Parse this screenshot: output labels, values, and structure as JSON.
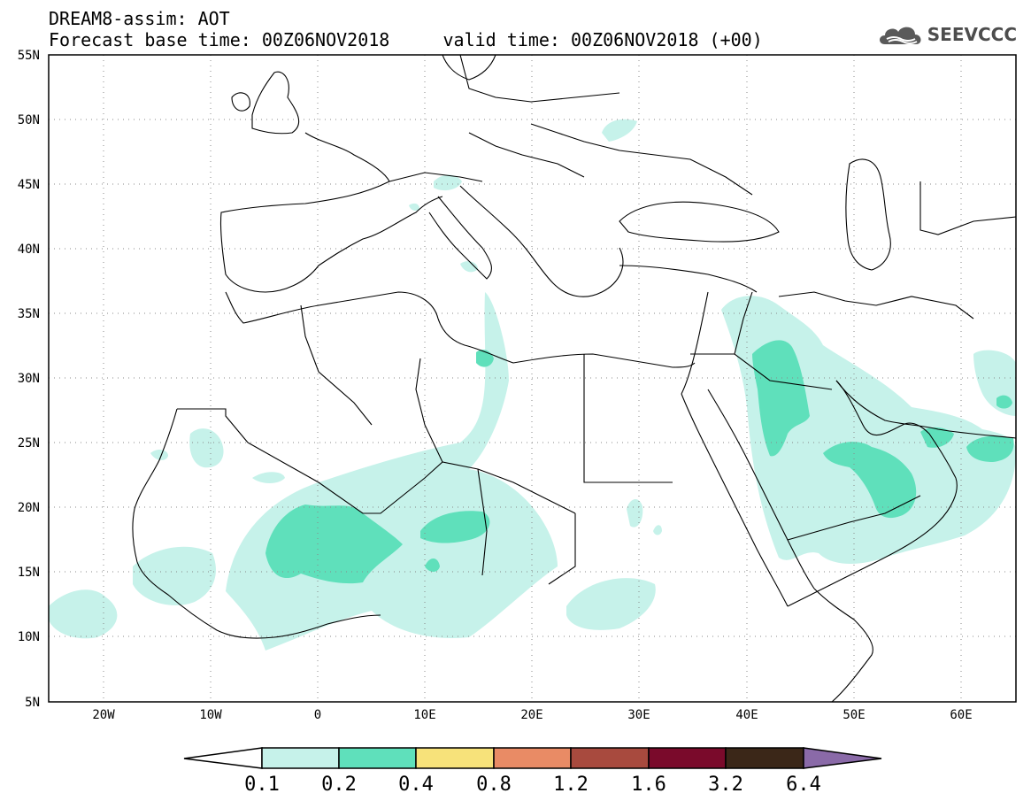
{
  "title": {
    "line1": "DREAM8-assim: AOT",
    "line2": "Forecast base time: 00Z06NOV2018     valid time: 00Z06NOV2018 (+00)"
  },
  "logo": {
    "icon": "cloud-icon",
    "text": "SEEVCCC",
    "color": "#4d4d4d"
  },
  "map": {
    "lon_range": [
      -25,
      65
    ],
    "lat_range": [
      5,
      55
    ],
    "lat_ticks": [
      {
        "value": 55,
        "label": "55N"
      },
      {
        "value": 50,
        "label": "50N"
      },
      {
        "value": 45,
        "label": "45N"
      },
      {
        "value": 40,
        "label": "40N"
      },
      {
        "value": 35,
        "label": "35N"
      },
      {
        "value": 30,
        "label": "30N"
      },
      {
        "value": 25,
        "label": "25N"
      },
      {
        "value": 20,
        "label": "20N"
      },
      {
        "value": 15,
        "label": "15N"
      },
      {
        "value": 10,
        "label": "10N"
      },
      {
        "value": 5,
        "label": "5N"
      }
    ],
    "lon_ticks": [
      {
        "value": -20,
        "label": "20W"
      },
      {
        "value": -10,
        "label": "10W"
      },
      {
        "value": 0,
        "label": "0"
      },
      {
        "value": 10,
        "label": "10E"
      },
      {
        "value": 20,
        "label": "20E"
      },
      {
        "value": 30,
        "label": "30E"
      },
      {
        "value": 40,
        "label": "40E"
      },
      {
        "value": 50,
        "label": "50E"
      },
      {
        "value": 60,
        "label": "60E"
      }
    ],
    "grid": "dotted",
    "colors": {
      "level1": "#c6f2ea",
      "level2": "#5fe0bb",
      "coast": "#000000"
    }
  },
  "colorbar": {
    "labels": [
      "0.1",
      "0.2",
      "0.4",
      "0.8",
      "1.2",
      "1.6",
      "3.2",
      "6.4"
    ],
    "colors": [
      "#ffffff",
      "#c6f2ea",
      "#5fe0bb",
      "#f7e27a",
      "#e98b65",
      "#a84a3e",
      "#7a0a2b",
      "#3b2718",
      "#8a6aa8"
    ]
  }
}
